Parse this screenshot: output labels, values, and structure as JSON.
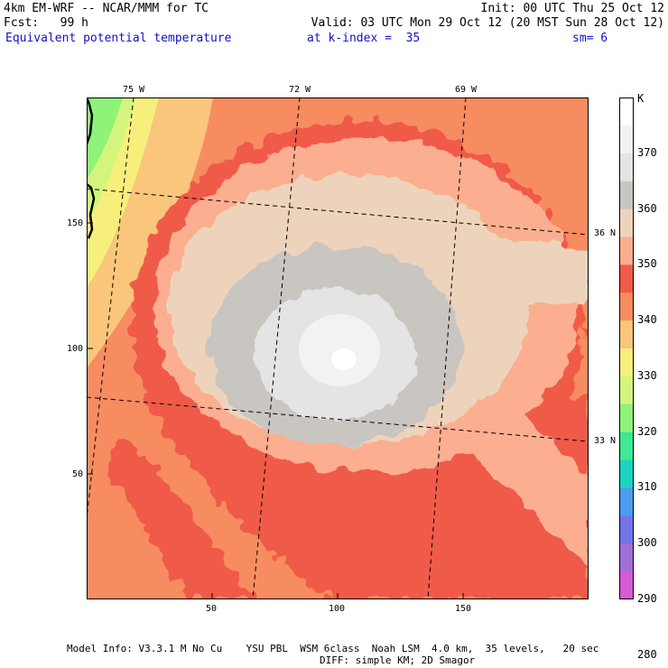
{
  "header": {
    "model_line": "4km EM-WRF -- NCAR/MMM for TC",
    "init_line": "Init: 00 UTC Thu 25 Oct 12",
    "fcst_line": "Fcst:   99 h",
    "valid_line": "Valid: 03 UTC Mon 29 Oct 12 (20 MST Sun 28 Oct 12)",
    "field_name": "Equivalent potential temperature",
    "level_text": "at k-index =  35",
    "smooth_text": "sm= 6"
  },
  "map": {
    "x_ticks": [
      "50",
      "100",
      "150"
    ],
    "y_ticks": [
      "150",
      "100",
      "50"
    ],
    "lon_labels": [
      "75 W",
      "72 W",
      "69 W"
    ],
    "lat_labels": [
      "36 N",
      "33 N"
    ]
  },
  "colorbar": {
    "unit": "K",
    "labels": [
      "370",
      "360",
      "350",
      "340",
      "330",
      "320",
      "310",
      "300",
      "290",
      "280"
    ],
    "colors": [
      "#ffffff",
      "#f2f2f2",
      "#e4e4e4",
      "#c9c5c1",
      "#eed3bc",
      "#fbae90",
      "#f05a48",
      "#f78c60",
      "#f9c67c",
      "#f7ef7c",
      "#d4f57d",
      "#8ff37a",
      "#3ee991",
      "#1fd3c2",
      "#4a9cf0",
      "#7474e8",
      "#a070d8",
      "#d65ad2"
    ]
  },
  "footer": {
    "line1": "Model Info: V3.3.1 M No Cu    YSU PBL  WSM 6class  Noah LSM  4.0 km,  35 levels,   20 sec",
    "line2": "DIFF: simple KM; 2D Smagor"
  }
}
